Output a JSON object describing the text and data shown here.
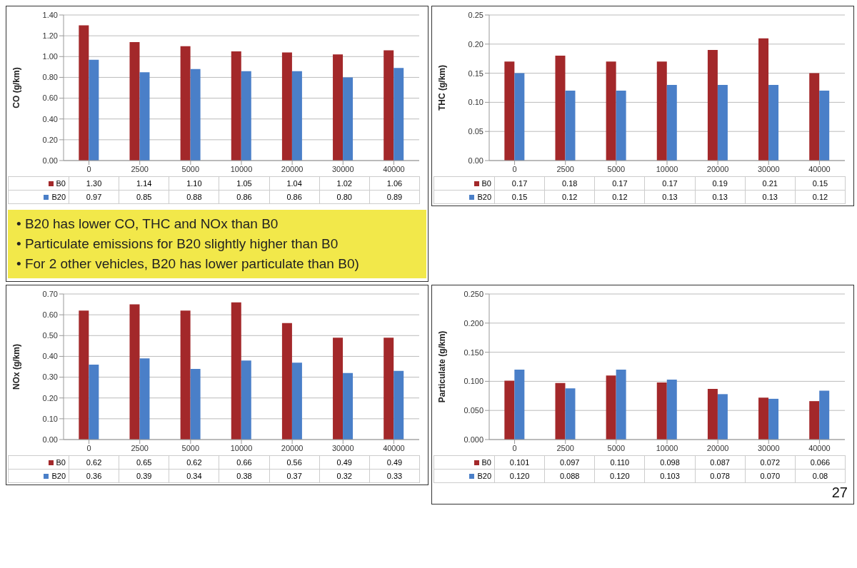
{
  "chart_data": [
    {
      "type": "bar",
      "ylabel": "CO (g/km)",
      "categories": [
        "0",
        "2500",
        "5000",
        "10000",
        "20000",
        "30000",
        "40000"
      ],
      "ylim": [
        0,
        1.4
      ],
      "yticks": [
        {
          "value": 0,
          "label": "0.00"
        },
        {
          "value": 0.2,
          "label": "0.20"
        },
        {
          "value": 0.4,
          "label": "0.40"
        },
        {
          "value": 0.6,
          "label": "0.60"
        },
        {
          "value": 0.8,
          "label": "0.80"
        },
        {
          "value": 1.0,
          "label": "1.00"
        },
        {
          "value": 1.2,
          "label": "1.20"
        },
        {
          "value": 1.4,
          "label": "1.40"
        }
      ],
      "grid": "y",
      "legend": "bottom left",
      "series": [
        {
          "name": "B0",
          "color": "#a3282a",
          "values": [
            1.3,
            1.14,
            1.1,
            1.05,
            1.04,
            1.02,
            1.06
          ],
          "value_labels": [
            "1.30",
            "1.14",
            "1.10",
            "1.05",
            "1.04",
            "1.02",
            "1.06"
          ]
        },
        {
          "name": "B20",
          "color": "#4a7fc8",
          "values": [
            0.97,
            0.85,
            0.88,
            0.86,
            0.86,
            0.8,
            0.89
          ],
          "value_labels": [
            "0.97",
            "0.85",
            "0.88",
            "0.86",
            "0.86",
            "0.80",
            "0.89"
          ]
        }
      ],
      "annotations": [
        "• B20 has lower CO, THC and NOx than B0",
        "• Particulate emissions for B20 slightly higher than B0",
        "• For 2 other vehicles, B20 has lower particulate than B0)"
      ]
    },
    {
      "type": "bar",
      "ylabel": "THC (g/km)",
      "categories": [
        "0",
        "2500",
        "5000",
        "10000",
        "20000",
        "30000",
        "40000"
      ],
      "ylim": [
        0,
        0.25
      ],
      "yticks": [
        {
          "value": 0,
          "label": "0.00"
        },
        {
          "value": 0.05,
          "label": "0.05"
        },
        {
          "value": 0.1,
          "label": "0.10"
        },
        {
          "value": 0.15,
          "label": "0.15"
        },
        {
          "value": 0.2,
          "label": "0.20"
        },
        {
          "value": 0.25,
          "label": "0.25"
        }
      ],
      "grid": "y",
      "legend": "bottom left",
      "series": [
        {
          "name": "B0",
          "color": "#a3282a",
          "values": [
            0.17,
            0.18,
            0.17,
            0.17,
            0.19,
            0.21,
            0.15
          ],
          "value_labels": [
            "0.17",
            "0.18",
            "0.17",
            "0.17",
            "0.19",
            "0.21",
            "0.15"
          ]
        },
        {
          "name": "B20",
          "color": "#4a7fc8",
          "values": [
            0.15,
            0.12,
            0.12,
            0.13,
            0.13,
            0.13,
            0.12
          ],
          "value_labels": [
            "0.15",
            "0.12",
            "0.12",
            "0.13",
            "0.13",
            "0.13",
            "0.12"
          ]
        }
      ]
    },
    {
      "type": "bar",
      "ylabel": "NOx (g/km)",
      "categories": [
        "0",
        "2500",
        "5000",
        "10000",
        "20000",
        "30000",
        "40000"
      ],
      "ylim": [
        0,
        0.7
      ],
      "yticks": [
        {
          "value": 0,
          "label": "0.00"
        },
        {
          "value": 0.1,
          "label": "0.10"
        },
        {
          "value": 0.2,
          "label": "0.20"
        },
        {
          "value": 0.3,
          "label": "0.30"
        },
        {
          "value": 0.4,
          "label": "0.40"
        },
        {
          "value": 0.5,
          "label": "0.50"
        },
        {
          "value": 0.6,
          "label": "0.60"
        },
        {
          "value": 0.7,
          "label": "0.70"
        }
      ],
      "grid": "y",
      "legend": "bottom left",
      "series": [
        {
          "name": "B0",
          "color": "#a3282a",
          "values": [
            0.62,
            0.65,
            0.62,
            0.66,
            0.56,
            0.49,
            0.49
          ],
          "value_labels": [
            "0.62",
            "0.65",
            "0.62",
            "0.66",
            "0.56",
            "0.49",
            "0.49"
          ]
        },
        {
          "name": "B20",
          "color": "#4a7fc8",
          "values": [
            0.36,
            0.39,
            0.34,
            0.38,
            0.37,
            0.32,
            0.33
          ],
          "value_labels": [
            "0.36",
            "0.39",
            "0.34",
            "0.38",
            "0.37",
            "0.32",
            "0.33"
          ]
        }
      ]
    },
    {
      "type": "bar",
      "ylabel": "Particulate (g/km)",
      "categories": [
        "0",
        "2500",
        "5000",
        "10000",
        "20000",
        "30000",
        "40000"
      ],
      "ylim": [
        0,
        0.25
      ],
      "yticks": [
        {
          "value": 0,
          "label": "0.000"
        },
        {
          "value": 0.05,
          "label": "0.050"
        },
        {
          "value": 0.1,
          "label": "0.100"
        },
        {
          "value": 0.15,
          "label": "0.150"
        },
        {
          "value": 0.2,
          "label": "0.200"
        },
        {
          "value": 0.25,
          "label": "0.250"
        }
      ],
      "grid": "y",
      "legend": "bottom left",
      "series": [
        {
          "name": "B0",
          "color": "#a3282a",
          "values": [
            0.101,
            0.097,
            0.11,
            0.098,
            0.087,
            0.072,
            0.066
          ],
          "value_labels": [
            "0.101",
            "0.097",
            "0.110",
            "0.098",
            "0.087",
            "0.072",
            "0.066"
          ]
        },
        {
          "name": "B20",
          "color": "#4a7fc8",
          "values": [
            0.12,
            0.088,
            0.12,
            0.103,
            0.078,
            0.07,
            0.084
          ],
          "value_labels": [
            "0.120",
            "0.088",
            "0.120",
            "0.103",
            "0.078",
            "0.070",
            "0.08"
          ]
        }
      ],
      "annotations": [
        "27"
      ]
    }
  ]
}
